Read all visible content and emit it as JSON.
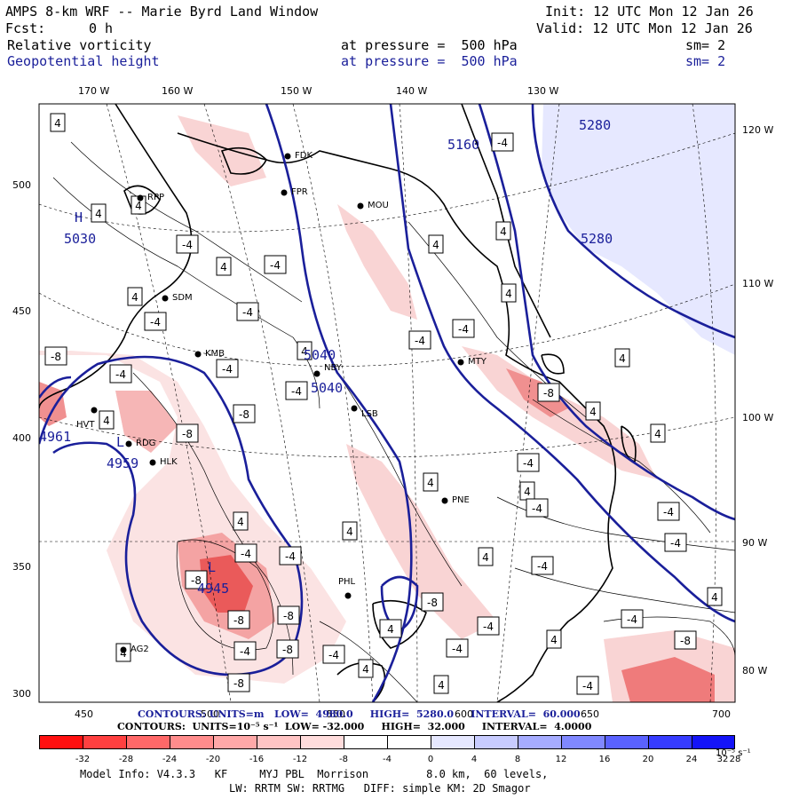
{
  "header": {
    "model_title": "AMPS 8-km WRF -- Marie Byrd Land Window",
    "init": "Init: 12 UTC Mon 12 Jan 26",
    "fcst_label": "Fcst:",
    "fcst_value": "0 h",
    "valid": "Valid: 12 UTC Mon 12 Jan 26",
    "field1_name": "Relative vorticity",
    "field1_level": "at pressure =  500 hPa",
    "field1_sm": "sm= 2",
    "field2_name": "Geopotential height",
    "field2_level": "at pressure =  500 hPa",
    "field2_sm": "sm= 2"
  },
  "colors": {
    "height_contour": "#1a1f9a",
    "text_blue": "#1a1f9a",
    "vort_neg_strong": "#e84040",
    "vort_neg_light": "#f9d4d4",
    "vort_pos": "#c8cdf5"
  },
  "axes": {
    "top_lon_labels": [
      "170 W",
      "160 W",
      "150 W",
      "140 W",
      "130 W"
    ],
    "right_lon_labels": [
      "120 W",
      "110 W",
      "100 W",
      "90 W",
      "80 W"
    ],
    "left_y_labels": [
      "500",
      "450",
      "400",
      "350",
      "300"
    ],
    "bottom_x_labels": [
      "450",
      "500",
      "550",
      "600",
      "650",
      "700"
    ]
  },
  "stations": [
    "FDK",
    "FPR",
    "MOU",
    "RPP",
    "SDM",
    "KMB",
    "NBY",
    "LSB",
    "MTY",
    "HVT",
    "RDG",
    "HLK",
    "PNE",
    "PHL",
    "AG2"
  ],
  "map_labels": {
    "high_1": "H",
    "high_1_value": "5030",
    "low_1": "L",
    "low_1_value": "4959",
    "low_edge_value": "4961",
    "low_2": "L",
    "low_2_value": "4945",
    "h_5040_a": "5040",
    "h_5040_b": "5040",
    "h_5160": "5160",
    "h_5280_a": "5280",
    "h_5280_b": "5280"
  },
  "contour_boxes": [
    "4",
    "-4",
    "-8"
  ],
  "footer": {
    "contours_height": "CONTOURS: UNITS=m   LOW=  4980.0     HIGH=  5280.0     INTERVAL=  60.000",
    "contours_vort": "CONTOURS:  UNITS=10⁻⁵ s⁻¹  LOW= -32.000     HIGH=  32.000     INTERVAL=  4.0000",
    "colorbar_labels": [
      "-32",
      "-28",
      "-24",
      "-20",
      "-16",
      "-12",
      "-8",
      "-4",
      "0",
      "4",
      "8",
      "12",
      "16",
      "20",
      "24",
      "28",
      "32"
    ],
    "colorbar_unit": "10⁻⁵ s⁻¹",
    "colorbar_colors": [
      "#ff1010",
      "#ff4040",
      "#ff6868",
      "#ff8c8c",
      "#ffa8a8",
      "#ffc4c4",
      "#ffdcdc",
      "#ffffff",
      "#ffffff",
      "#e6e8ff",
      "#c8ccff",
      "#a6acff",
      "#8088ff",
      "#5a62ff",
      "#363cff",
      "#1414f8"
    ],
    "model_info": "Model Info: V4.3.3   KF     MYJ PBL  Morrison         8.0 km,  60 levels,",
    "model_info2": "LW: RRTM SW: RRTMG   DIFF: simple KM: 2D Smagor"
  }
}
